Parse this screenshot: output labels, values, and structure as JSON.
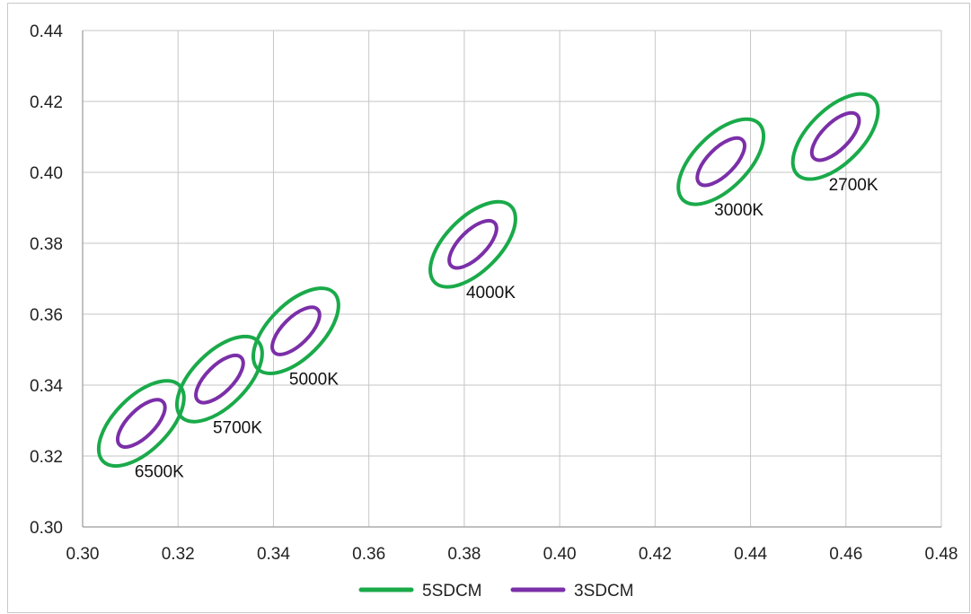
{
  "chart_data": {
    "type": "scatter",
    "title": "",
    "xlabel": "",
    "ylabel": "",
    "xlim": [
      0.3,
      0.48
    ],
    "ylim": [
      0.3,
      0.44
    ],
    "x_ticks": [
      "0.30",
      "0.32",
      "0.34",
      "0.36",
      "0.38",
      "0.40",
      "0.42",
      "0.44",
      "0.46",
      "0.48"
    ],
    "y_ticks": [
      "0.30",
      "0.32",
      "0.34",
      "0.36",
      "0.38",
      "0.40",
      "0.42",
      "0.44"
    ],
    "grid": true,
    "legend_position": "bottom",
    "series": [
      {
        "name": "5SDCM",
        "color": "#1aaa4a"
      },
      {
        "name": "3SDCM",
        "color": "#7b2fa8"
      }
    ],
    "points": [
      {
        "label": "6500K",
        "x": 0.3123,
        "y": 0.3292
      },
      {
        "label": "5700K",
        "x": 0.3287,
        "y": 0.3417
      },
      {
        "label": "5000K",
        "x": 0.3447,
        "y": 0.3553
      },
      {
        "label": "4000K",
        "x": 0.3818,
        "y": 0.3797
      },
      {
        "label": "3000K",
        "x": 0.4338,
        "y": 0.403
      },
      {
        "label": "2700K",
        "x": 0.4578,
        "y": 0.4101
      }
    ]
  }
}
